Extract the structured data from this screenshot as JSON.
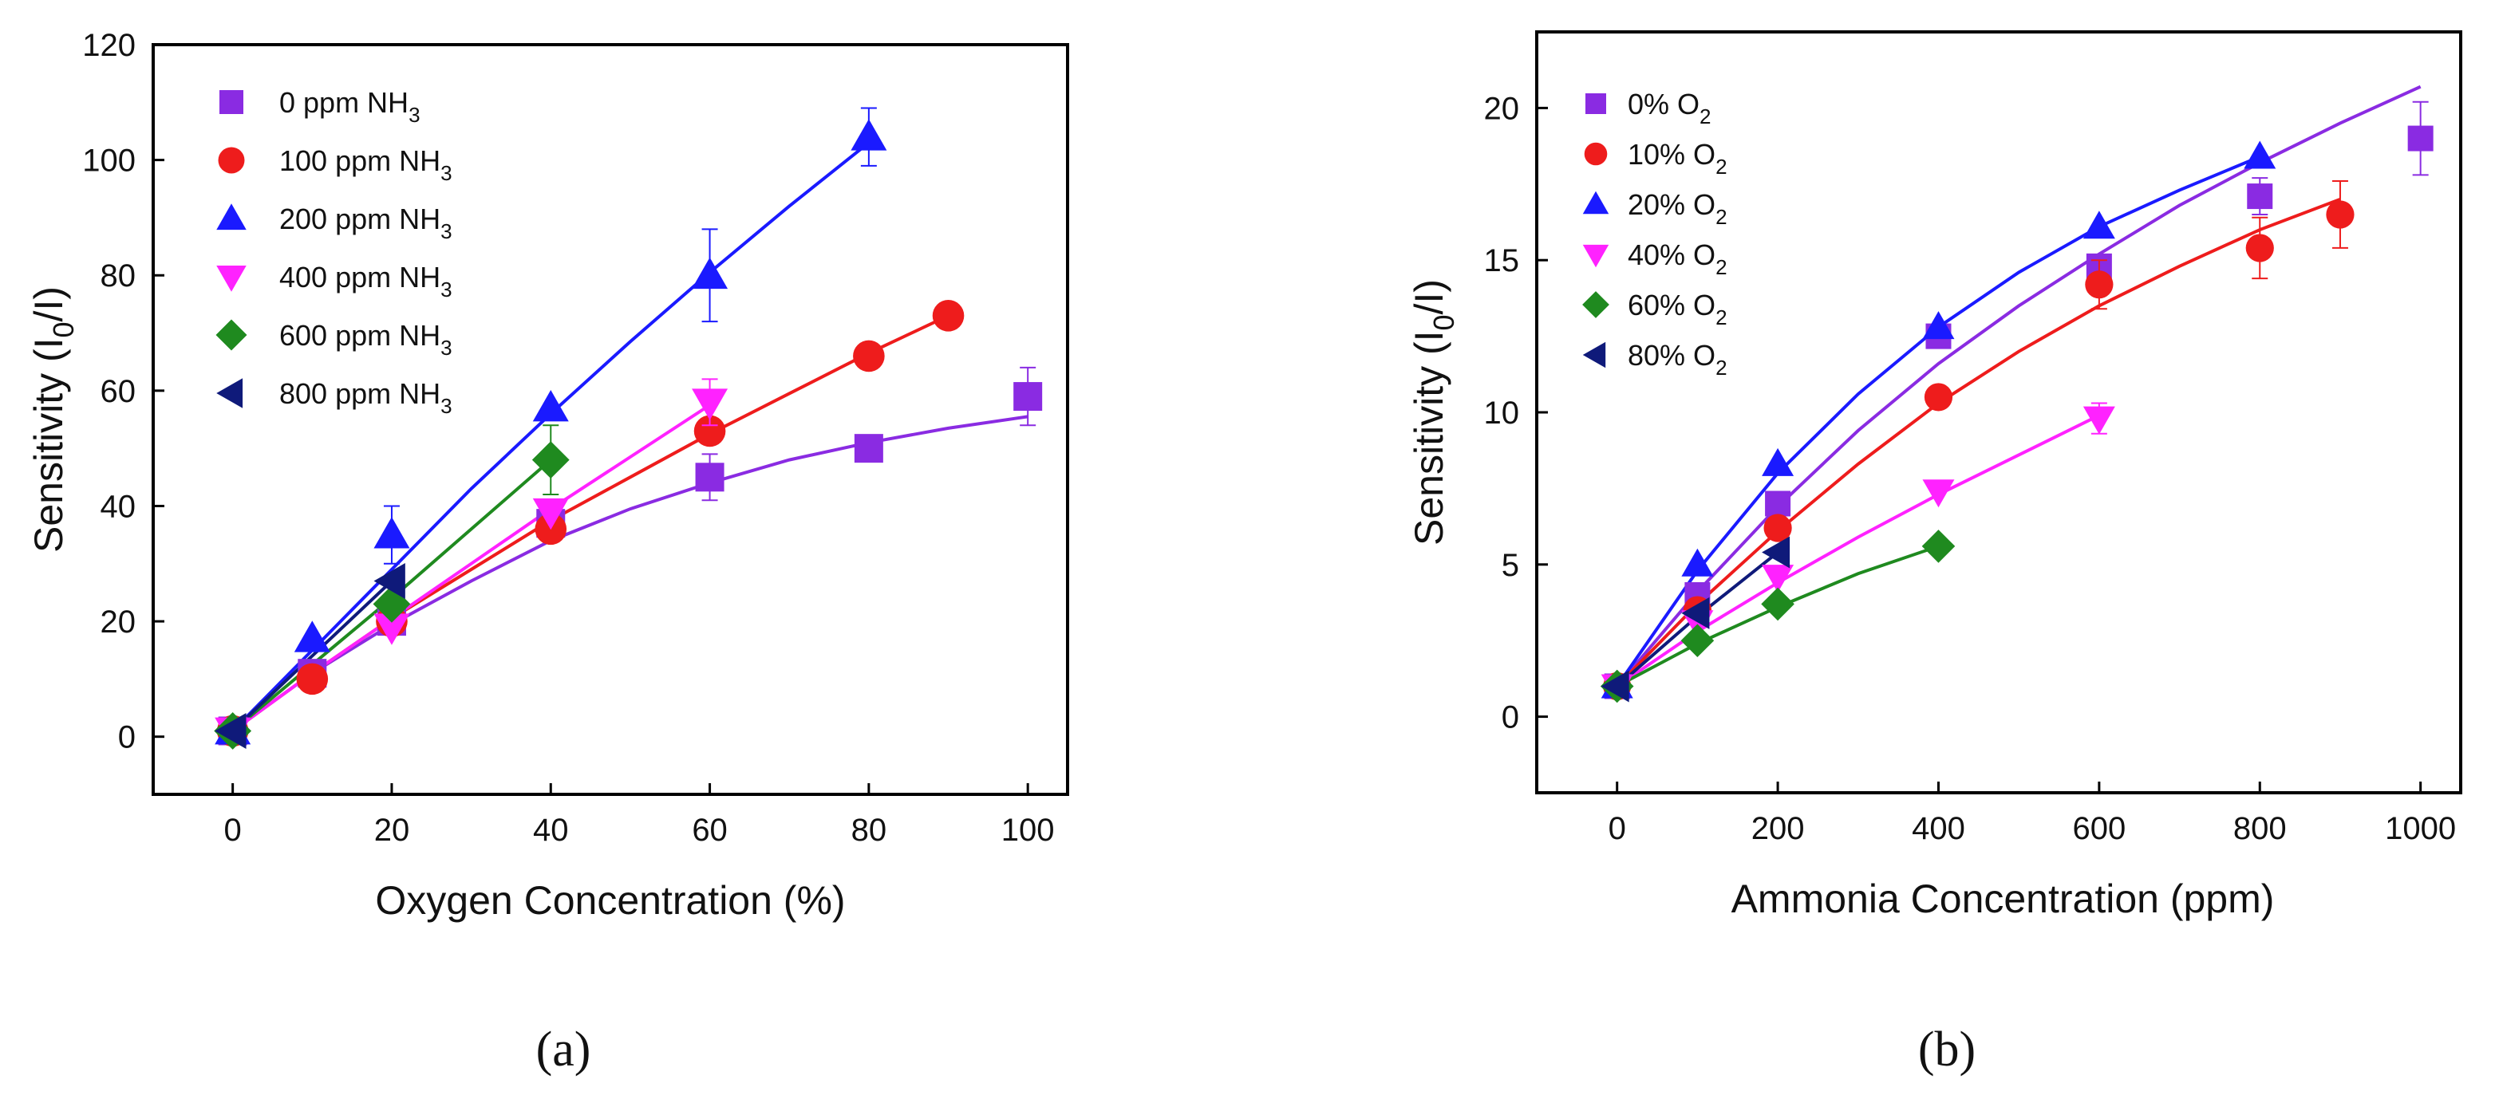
{
  "chart_data": [
    {
      "panel": "(a)",
      "type": "scatter",
      "xlabel": "Oxygen Concentration (%)",
      "ylabel": "Sensitivity (I0/I)",
      "ylabel_parts": {
        "a": "Sensitivity (I",
        "sub": "0",
        "b": "/I)"
      },
      "xlim": [
        -10,
        105
      ],
      "ylim": [
        -10,
        120
      ],
      "xticks": [
        0,
        20,
        40,
        60,
        80,
        100
      ],
      "yticks": [
        0,
        20,
        40,
        60,
        80,
        100,
        120
      ],
      "legend_position": "top-left",
      "series": [
        {
          "name": "0 ppm NH3",
          "legend": {
            "a": "0 ppm NH",
            "sub": "3"
          },
          "color": "#8a2be2",
          "marker": "square",
          "x": [
            0,
            10,
            20,
            40,
            60,
            80,
            100
          ],
          "y": [
            1,
            11,
            20,
            37,
            45,
            50,
            59
          ],
          "err": [
            0,
            0,
            0,
            0,
            4,
            0,
            5
          ],
          "fit_x": [
            0,
            10,
            20,
            30,
            40,
            50,
            60,
            70,
            80,
            90,
            100
          ],
          "fit_y": [
            1,
            11,
            19.5,
            27,
            34,
            39.5,
            44,
            48,
            51,
            53.5,
            55.5
          ]
        },
        {
          "name": "100 ppm NH3",
          "legend": {
            "a": "100 ppm NH",
            "sub": "3"
          },
          "color": "#ee1c1c",
          "marker": "circle",
          "x": [
            0,
            10,
            20,
            40,
            60,
            80,
            90
          ],
          "y": [
            1,
            10,
            20,
            36,
            53,
            66,
            73
          ],
          "err": [
            0,
            0,
            0,
            0,
            0,
            0,
            0
          ],
          "fit_x": [
            0,
            10,
            20,
            30,
            40,
            50,
            60,
            70,
            80,
            90
          ],
          "fit_y": [
            1,
            11,
            20.5,
            29,
            37.5,
            45,
            52.5,
            59.5,
            66.5,
            73
          ]
        },
        {
          "name": "200 ppm NH3",
          "legend": {
            "a": "200 ppm NH",
            "sub": "3"
          },
          "color": "#1a1aff",
          "marker": "triangle-up",
          "x": [
            0,
            10,
            20,
            40,
            60,
            80
          ],
          "y": [
            1,
            17,
            35,
            57,
            80,
            104
          ],
          "err": [
            0,
            0,
            5,
            0,
            8,
            5
          ],
          "fit_x": [
            0,
            10,
            20,
            30,
            40,
            50,
            60,
            70,
            80
          ],
          "fit_y": [
            1,
            15,
            29,
            43,
            56,
            68.5,
            80.5,
            92,
            103
          ]
        },
        {
          "name": "400 ppm NH3",
          "legend": {
            "a": "400 ppm NH",
            "sub": "3"
          },
          "color": "#ff22ff",
          "marker": "triangle-down",
          "x": [
            0,
            20,
            40,
            60
          ],
          "y": [
            1,
            19,
            39,
            58
          ],
          "err": [
            0,
            0,
            0,
            4
          ],
          "fit_x": [
            0,
            10,
            20,
            30,
            40,
            50,
            60
          ],
          "fit_y": [
            1,
            11,
            20.5,
            30,
            39.5,
            48.5,
            57.5
          ]
        },
        {
          "name": "600 ppm NH3",
          "legend": {
            "a": "600 ppm NH",
            "sub": "3"
          },
          "color": "#1f8a1f",
          "marker": "diamond",
          "x": [
            0,
            20,
            40
          ],
          "y": [
            1,
            23,
            48
          ],
          "err": [
            0,
            0,
            6
          ],
          "fit_x": [
            0,
            10,
            20,
            30,
            40
          ],
          "fit_y": [
            1,
            12.5,
            24,
            36,
            48
          ]
        },
        {
          "name": "800 ppm NH3",
          "legend": {
            "a": "800 ppm NH",
            "sub": "3"
          },
          "color": "#0f1a7a",
          "marker": "triangle-left",
          "x": [
            0,
            20
          ],
          "y": [
            1,
            27
          ],
          "err": [
            0,
            0
          ],
          "fit_x": [
            0,
            10,
            20
          ],
          "fit_y": [
            1,
            14,
            27
          ]
        }
      ]
    },
    {
      "panel": "(b)",
      "type": "scatter",
      "xlabel": "Ammonia Concentration (ppm)",
      "ylabel": "Sensitivity (I0/I)",
      "ylabel_parts": {
        "a": "Sensitivity (I",
        "sub": "0",
        "b": "/I)"
      },
      "xlim": [
        -100,
        1050
      ],
      "ylim": [
        -2.5,
        22.5
      ],
      "xticks": [
        0,
        200,
        400,
        600,
        800,
        1000
      ],
      "yticks": [
        0,
        5,
        10,
        15,
        20
      ],
      "legend_position": "top-left",
      "series": [
        {
          "name": "0% O2",
          "legend": {
            "a": "0% O",
            "sub": "2"
          },
          "color": "#8a2be2",
          "marker": "square",
          "x": [
            0,
            100,
            200,
            400,
            600,
            800,
            1000
          ],
          "y": [
            1,
            4,
            7,
            12.5,
            14.8,
            17.1,
            19
          ],
          "err": [
            0,
            0,
            0,
            0,
            0,
            0.6,
            1.2
          ],
          "fit_x": [
            0,
            100,
            200,
            300,
            400,
            500,
            600,
            700,
            800,
            900,
            1000
          ],
          "fit_y": [
            1,
            4.1,
            6.9,
            9.4,
            11.6,
            13.5,
            15.2,
            16.8,
            18.2,
            19.5,
            20.7
          ]
        },
        {
          "name": "10% O2",
          "legend": {
            "a": "10% O",
            "sub": "2"
          },
          "color": "#ee1c1c",
          "marker": "circle",
          "x": [
            0,
            100,
            200,
            400,
            600,
            800,
            900
          ],
          "y": [
            1,
            3.5,
            6.2,
            10.5,
            14.2,
            15.4,
            16.5
          ],
          "err": [
            0,
            0,
            0,
            0,
            0.8,
            1.0,
            1.1
          ],
          "fit_x": [
            0,
            100,
            200,
            300,
            400,
            500,
            600,
            700,
            800,
            900
          ],
          "fit_y": [
            1,
            3.7,
            6.1,
            8.3,
            10.3,
            12,
            13.5,
            14.8,
            16,
            17
          ]
        },
        {
          "name": "20% O2",
          "legend": {
            "a": "20% O",
            "sub": "2"
          },
          "color": "#1a1aff",
          "marker": "triangle-up",
          "x": [
            0,
            100,
            200,
            400,
            600,
            800
          ],
          "y": [
            1,
            5,
            8.3,
            12.8,
            16.1,
            18.4
          ],
          "err": [
            0,
            0,
            0,
            0,
            0,
            0
          ],
          "fit_x": [
            0,
            100,
            200,
            300,
            400,
            500,
            600,
            700,
            800
          ],
          "fit_y": [
            1,
            4.8,
            8,
            10.6,
            12.8,
            14.6,
            16.1,
            17.3,
            18.4
          ]
        },
        {
          "name": "40% O2",
          "legend": {
            "a": "40% O",
            "sub": "2"
          },
          "color": "#ff22ff",
          "marker": "triangle-down",
          "x": [
            0,
            100,
            200,
            400,
            600
          ],
          "y": [
            1,
            3.1,
            4.6,
            7.4,
            9.8
          ],
          "err": [
            0,
            0,
            0,
            0,
            0.5
          ],
          "fit_x": [
            0,
            100,
            200,
            300,
            400,
            500,
            600
          ],
          "fit_y": [
            1,
            2.8,
            4.4,
            5.9,
            7.3,
            8.6,
            9.9
          ]
        },
        {
          "name": "60% O2",
          "legend": {
            "a": "60% O",
            "sub": "2"
          },
          "color": "#1f8a1f",
          "marker": "diamond",
          "x": [
            0,
            100,
            200,
            400
          ],
          "y": [
            1,
            2.5,
            3.7,
            5.6
          ],
          "err": [
            0,
            0,
            0,
            0
          ],
          "fit_x": [
            0,
            100,
            200,
            300,
            400
          ],
          "fit_y": [
            1,
            2.4,
            3.6,
            4.7,
            5.6
          ]
        },
        {
          "name": "80% O2",
          "legend": {
            "a": "80% O",
            "sub": "2"
          },
          "color": "#0f1a7a",
          "marker": "triangle-left",
          "x": [
            0,
            100,
            200
          ],
          "y": [
            1,
            3.4,
            5.4
          ],
          "err": [
            0,
            0,
            0
          ],
          "fit_x": [
            0,
            100,
            200
          ],
          "fit_y": [
            1,
            3.3,
            5.4
          ]
        }
      ]
    }
  ]
}
